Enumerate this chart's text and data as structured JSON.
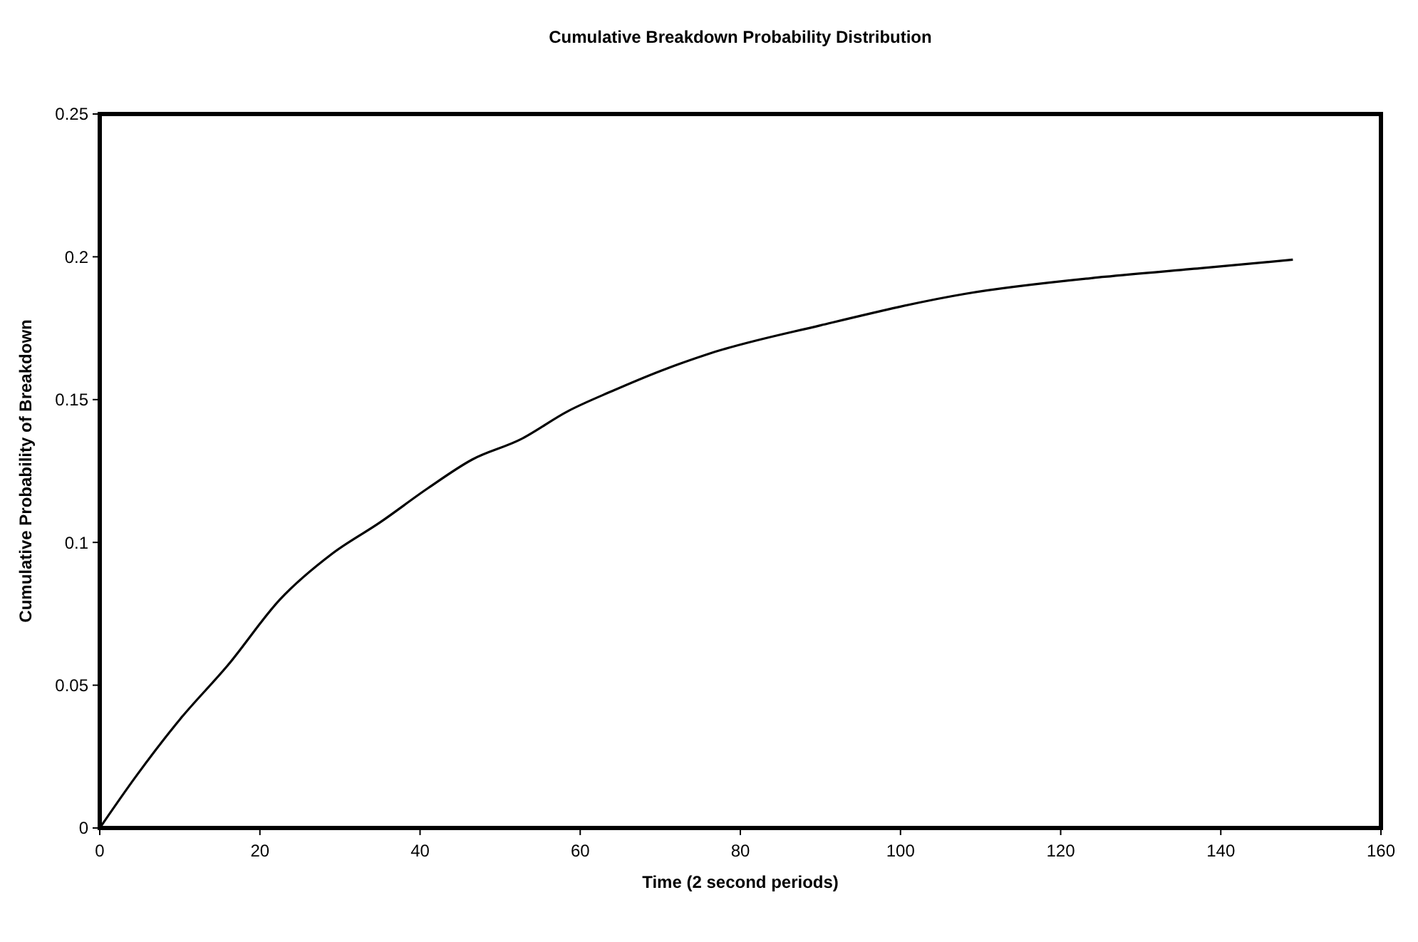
{
  "chart_data": {
    "type": "line",
    "title": "Cumulative Breakdown Probability Distribution",
    "xlabel": "Time (2 second periods)",
    "ylabel": "Cumulative Probability of Breakdown",
    "x": [
      0,
      4.5,
      10,
      16,
      22.5,
      29,
      35,
      41,
      46.5,
      52.5,
      58.5,
      64,
      70,
      76,
      90,
      108,
      125.5,
      137.5,
      149
    ],
    "series": [
      {
        "color": "#000000",
        "values": [
          0,
          0.018,
          0.038,
          0.057,
          0.08,
          0.096,
          0.107,
          0.119,
          0.129,
          0.136,
          0.146,
          0.153,
          0.16,
          0.166,
          0.176,
          0.187,
          0.193,
          0.196,
          0.199
        ]
      }
    ],
    "xlim": [
      0,
      160
    ],
    "xticks": [
      0,
      20,
      40,
      60,
      80,
      100,
      120,
      140,
      160
    ],
    "ylim": [
      0,
      0.25
    ],
    "yticks": [
      0,
      0.05,
      0.1,
      0.15,
      0.2,
      0.25
    ],
    "grid": false,
    "marker": "none",
    "line_style": "solid"
  }
}
